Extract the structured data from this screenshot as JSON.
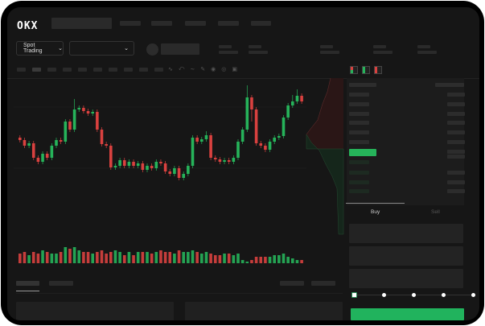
{
  "brand": {
    "logo": "OKX"
  },
  "market_selector": {
    "label": "Spot Trading",
    "icon": "chevron-down-icon"
  },
  "pair_selector": {
    "icon": "chevron-down-icon"
  },
  "trade_tabs": {
    "buy": "Buy",
    "sell": "Sell"
  },
  "colors": {
    "up": "#26b35a",
    "down": "#d9413f",
    "buy_button": "#21b35d",
    "background": "#161616"
  },
  "slider": {
    "value_percent": 0,
    "stops": [
      0,
      25,
      50,
      75,
      100
    ]
  },
  "order_book": {
    "asks_rows": 7,
    "bids_rows": 4
  },
  "chart_data": {
    "type": "candlestick",
    "candles": [
      [
        60,
        57,
        63,
        54
      ],
      [
        57,
        50,
        60,
        47
      ],
      [
        50,
        53,
        56,
        47
      ],
      [
        53,
        35,
        56,
        32
      ],
      [
        35,
        30,
        38,
        27
      ],
      [
        30,
        40,
        43,
        27
      ],
      [
        40,
        35,
        43,
        32
      ],
      [
        35,
        50,
        53,
        32
      ],
      [
        50,
        57,
        60,
        47
      ],
      [
        57,
        55,
        60,
        52
      ],
      [
        55,
        80,
        83,
        52
      ],
      [
        80,
        70,
        83,
        67
      ],
      [
        70,
        95,
        108,
        67
      ],
      [
        95,
        97,
        100,
        92
      ],
      [
        97,
        93,
        100,
        90
      ],
      [
        93,
        90,
        96,
        87
      ],
      [
        90,
        92,
        95,
        87
      ],
      [
        92,
        70,
        95,
        67
      ],
      [
        70,
        52,
        73,
        49
      ],
      [
        52,
        50,
        55,
        47
      ],
      [
        50,
        23,
        53,
        20
      ],
      [
        23,
        25,
        28,
        20
      ],
      [
        25,
        32,
        35,
        22
      ],
      [
        32,
        25,
        35,
        22
      ],
      [
        25,
        30,
        33,
        22
      ],
      [
        30,
        25,
        33,
        22
      ],
      [
        25,
        28,
        31,
        22
      ],
      [
        28,
        20,
        31,
        17
      ],
      [
        20,
        25,
        28,
        17
      ],
      [
        25,
        22,
        28,
        19
      ],
      [
        22,
        30,
        33,
        19
      ],
      [
        30,
        28,
        33,
        25
      ],
      [
        28,
        18,
        31,
        15
      ],
      [
        18,
        15,
        21,
        12
      ],
      [
        15,
        22,
        25,
        12
      ],
      [
        22,
        10,
        25,
        7
      ],
      [
        10,
        15,
        18,
        7
      ],
      [
        15,
        25,
        28,
        12
      ],
      [
        25,
        60,
        63,
        22
      ],
      [
        60,
        55,
        63,
        52
      ],
      [
        55,
        58,
        61,
        52
      ],
      [
        58,
        63,
        68,
        55
      ],
      [
        63,
        35,
        66,
        32
      ],
      [
        35,
        33,
        38,
        30
      ],
      [
        33,
        30,
        36,
        27
      ],
      [
        30,
        32,
        35,
        27
      ],
      [
        32,
        30,
        35,
        27
      ],
      [
        30,
        35,
        38,
        27
      ],
      [
        35,
        55,
        58,
        32
      ],
      [
        55,
        70,
        73,
        52
      ],
      [
        70,
        110,
        125,
        67
      ],
      [
        110,
        95,
        113,
        80
      ],
      [
        95,
        53,
        98,
        50
      ],
      [
        53,
        50,
        56,
        47
      ],
      [
        50,
        45,
        53,
        42
      ],
      [
        45,
        55,
        58,
        42
      ],
      [
        55,
        60,
        63,
        52
      ],
      [
        60,
        62,
        65,
        57
      ],
      [
        62,
        85,
        88,
        59
      ],
      [
        85,
        100,
        103,
        82
      ],
      [
        100,
        105,
        113,
        97
      ],
      [
        105,
        112,
        120,
        102
      ],
      [
        112,
        105,
        115,
        102
      ]
    ],
    "volumes": [
      6,
      7,
      5,
      7,
      6,
      8,
      7,
      6,
      6,
      7,
      10,
      9,
      10,
      8,
      7,
      7,
      6,
      7,
      8,
      6,
      7,
      8,
      7,
      5,
      7,
      5,
      7,
      7,
      7,
      6,
      7,
      8,
      7,
      7,
      6,
      8,
      7,
      7,
      8,
      7,
      6,
      7,
      6,
      5,
      5,
      6,
      6,
      5,
      6,
      2,
      1,
      2,
      4,
      4,
      4,
      4,
      5,
      5,
      6,
      4,
      3,
      2,
      2
    ],
    "ohlc_order": [
      "open",
      "close",
      "high",
      "low"
    ],
    "ylim": [
      0,
      130
    ]
  }
}
